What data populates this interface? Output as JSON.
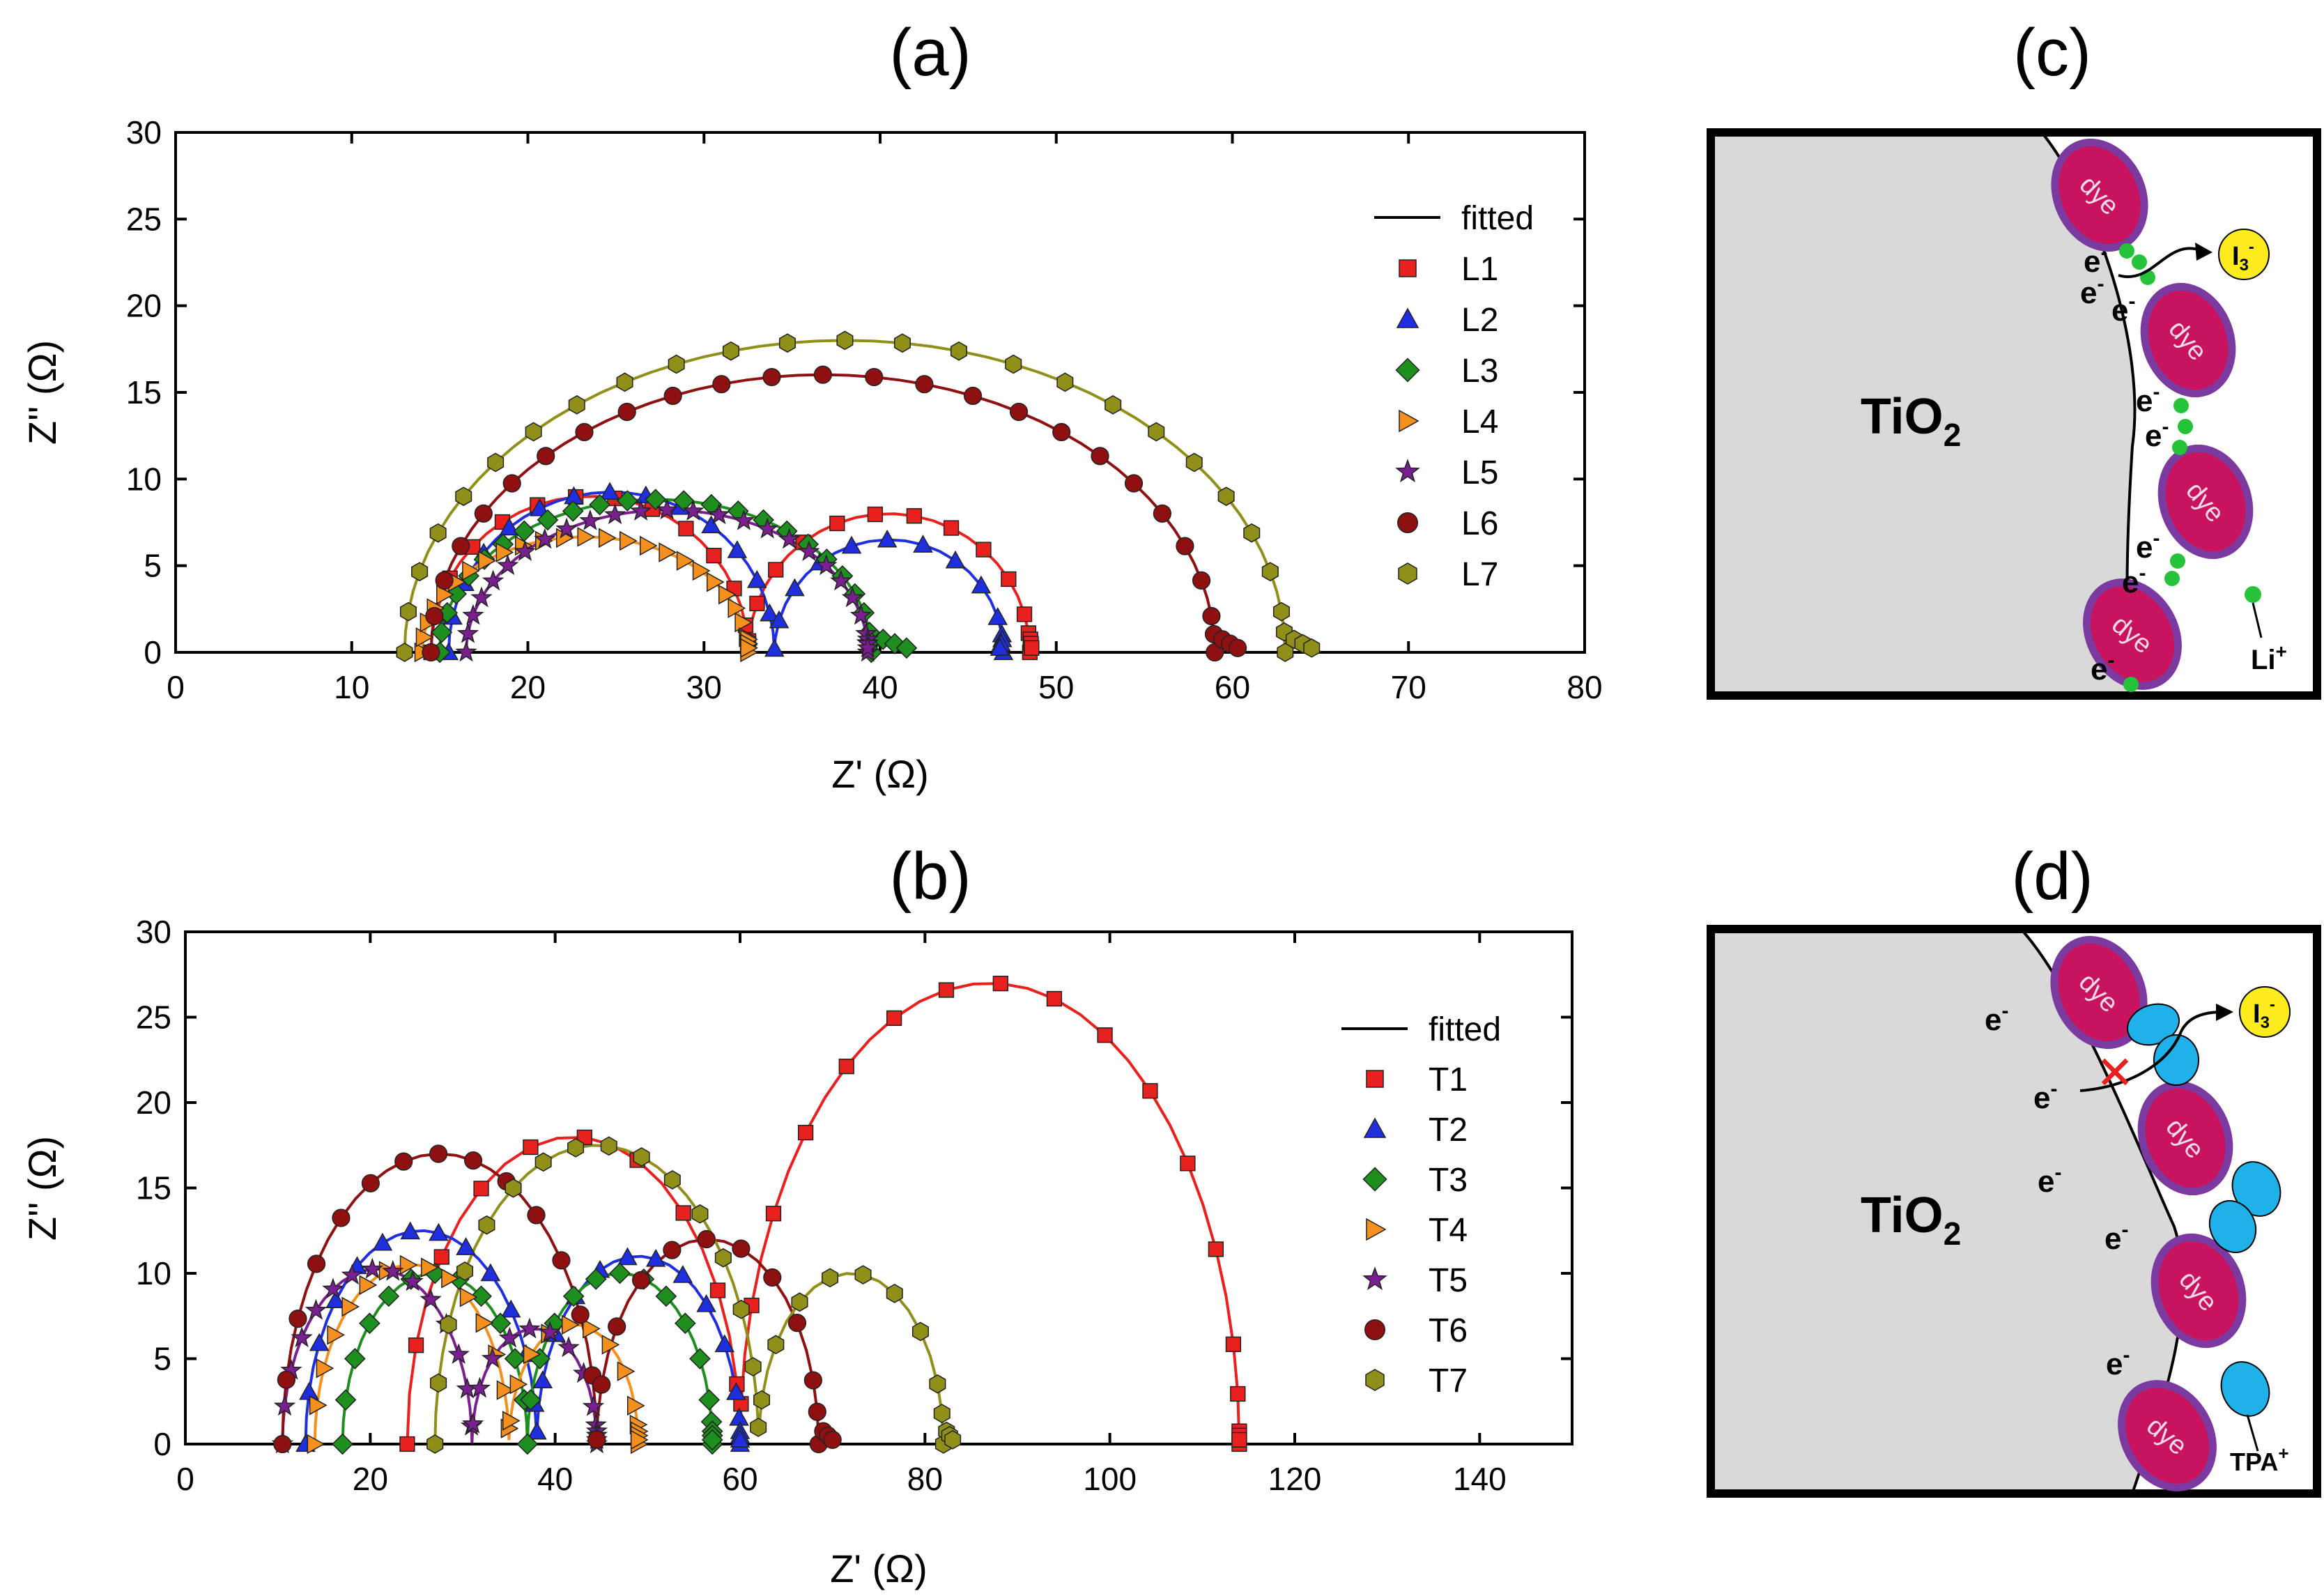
{
  "panel_labels": {
    "a": "(a)",
    "b": "(b)",
    "c": "(c)",
    "d": "(d)"
  },
  "diagram_c": {
    "material": "TiO",
    "material_sub": "2",
    "dye_label": "dye",
    "electron": "e",
    "electron_sup": "-",
    "ion": "Li",
    "ion_sup": "+",
    "redox": "I",
    "redox_sub": "3",
    "redox_sup": "-"
  },
  "diagram_d": {
    "material": "TiO",
    "material_sub": "2",
    "dye_label": "dye",
    "electron": "e",
    "electron_sup": "-",
    "ion": "TPA",
    "ion_sup": "+",
    "redox": "I",
    "redox_sub": "3",
    "redox_sup": "-",
    "block_mark": "✕"
  },
  "colors": {
    "L1": "#e8201e",
    "L2": "#1f2fe0",
    "L3": "#1e8f1e",
    "L4": "#f5901e",
    "L5": "#7a1f8f",
    "L6": "#8f1010",
    "L7": "#8f8f1a",
    "dye_fill": "#c8135e",
    "dye_ring": "#7a3aa0",
    "tio2": "#d9d9d9",
    "additive": "#1fb2e8",
    "li": "#25c23a",
    "redox": "#ffec1f",
    "cross": "#e82020"
  },
  "chart_data": [
    {
      "type": "scatter",
      "id": "a",
      "title": "(a)",
      "xlabel": "Z' (Ω)",
      "ylabel": "Z'' (Ω)",
      "xlim": [
        0,
        80
      ],
      "ylim": [
        0,
        30
      ],
      "xticks": [
        0,
        10,
        20,
        30,
        40,
        50,
        60,
        70,
        80
      ],
      "yticks": [
        0,
        5,
        10,
        15,
        20,
        25,
        30
      ],
      "legend_position": "top-right",
      "legend_line_label": "fitted",
      "series": [
        {
          "name": "L1",
          "marker": "square",
          "color": "#e8201e",
          "Rs": 14.5,
          "R1": 18.0,
          "R2": 16.0,
          "tail": 48.6
        },
        {
          "name": "L2",
          "marker": "triangle-up",
          "color": "#1f2fe0",
          "Rs": 15.5,
          "R1": 18.5,
          "R2": 13.0,
          "tail": 46.8
        },
        {
          "name": "L3",
          "marker": "diamond",
          "color": "#1e8f1e",
          "Rs": 15.0,
          "R1": 24.5,
          "R2": 0,
          "tail": 41.5
        },
        {
          "name": "L4",
          "marker": "triangle-right",
          "color": "#f5901e",
          "Rs": 14.0,
          "R1": 18.5,
          "R2": 0,
          "tail": 32.5
        },
        {
          "name": "L5",
          "marker": "star",
          "color": "#7a1f8f",
          "Rs": 16.5,
          "R1": 22.8,
          "R2": 0,
          "tail": 39.3
        },
        {
          "name": "L6",
          "marker": "circle",
          "color": "#8f1010",
          "Rs": 14.5,
          "R1": 44.5,
          "R2": 0,
          "tail": 60.3
        },
        {
          "name": "L7",
          "marker": "hexagon",
          "color": "#8f8f1a",
          "Rs": 13.0,
          "R1": 50.0,
          "R2": 0,
          "tail": 64.5
        }
      ]
    },
    {
      "type": "scatter",
      "id": "b",
      "title": "(b)",
      "xlabel": "Z' (Ω)",
      "ylabel": "Z'' (Ω)",
      "xlim": [
        0,
        150
      ],
      "ylim": [
        0,
        30
      ],
      "xticks": [
        0,
        20,
        40,
        60,
        80,
        100,
        120,
        140
      ],
      "yticks": [
        0,
        5,
        10,
        15,
        20,
        25,
        30
      ],
      "legend_position": "right",
      "legend_line_label": "fitted",
      "series": [
        {
          "name": "T1",
          "marker": "square",
          "color": "#e8201e",
          "Rs": 24.0,
          "R1": 36.0,
          "R2": 54.0,
          "tail": 114.0
        },
        {
          "name": "T2",
          "marker": "triangle-up",
          "color": "#1f2fe0",
          "Rs": 13.0,
          "R1": 25.0,
          "R2": 22.0,
          "tail": 60.0
        },
        {
          "name": "T3",
          "marker": "diamond",
          "color": "#1e8f1e",
          "Rs": 17.0,
          "R1": 20.0,
          "R2": 20.0,
          "tail": 57.0
        },
        {
          "name": "T4",
          "marker": "triangle-right",
          "color": "#f5901e",
          "Rs": 14.0,
          "R1": 21.0,
          "R2": 14.0,
          "tail": 49.0
        },
        {
          "name": "T5",
          "marker": "star",
          "color": "#7a1f8f",
          "Rs": 10.5,
          "R1": 20.5,
          "R2": 13.5,
          "tail": 44.5
        },
        {
          "name": "T6",
          "marker": "circle",
          "color": "#8f1010",
          "Rs": 10.5,
          "R1": 34.0,
          "R2": 24.0,
          "tail": 70.0
        },
        {
          "name": "T7",
          "marker": "hexagon",
          "color": "#8f8f1a",
          "Rs": 27.0,
          "R1": 35.0,
          "R2": 20.0,
          "tail": 83.0
        }
      ]
    }
  ]
}
